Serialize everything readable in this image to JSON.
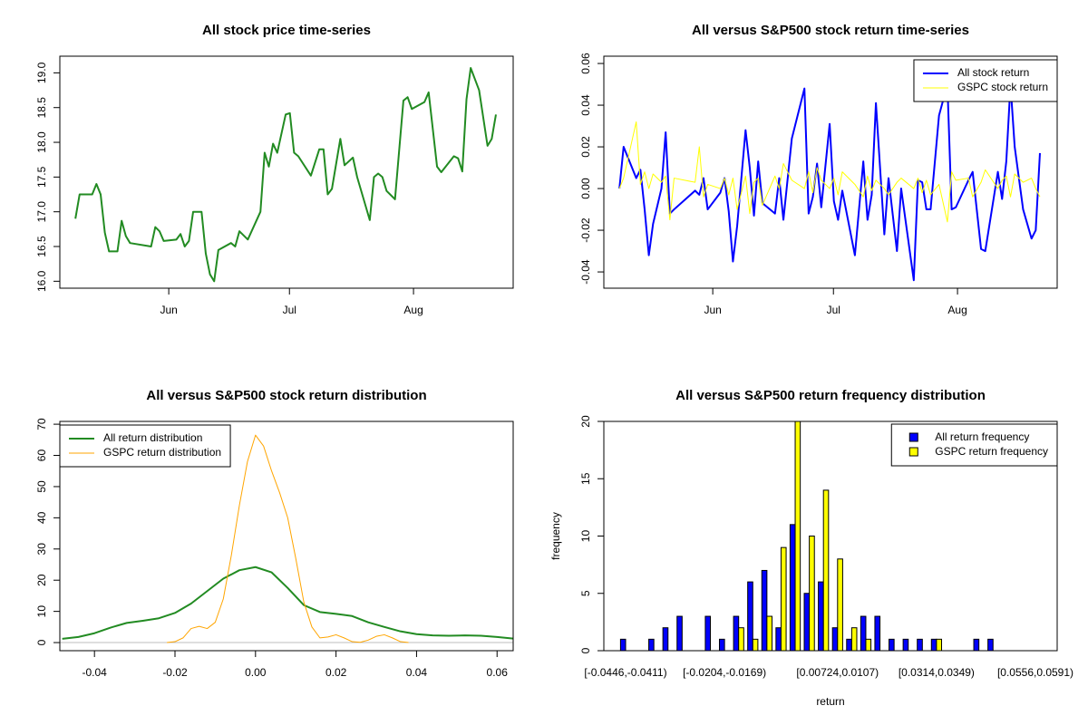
{
  "chart_data": [
    {
      "type": "line",
      "title": "All stock price time-series",
      "x": [
        0,
        1,
        4,
        5,
        6,
        7,
        8,
        10,
        11,
        12,
        13,
        18,
        19,
        20,
        21,
        24,
        25,
        26,
        27,
        28,
        30,
        31,
        32,
        33,
        34,
        37,
        38,
        39,
        41,
        44,
        45,
        46,
        47,
        48,
        50,
        51,
        52,
        53,
        56,
        58,
        59,
        60,
        61,
        63,
        64,
        66,
        67,
        70,
        71,
        72,
        73,
        74,
        76,
        78,
        79,
        80,
        83,
        84,
        86,
        87,
        90,
        91,
        92,
        93,
        94,
        96,
        98,
        99,
        100
      ],
      "xlim": [
        -3.7,
        104.1
      ],
      "xticks": [
        {
          "value": 22.2,
          "label": "Jun"
        },
        {
          "value": 50.9,
          "label": "Jul"
        },
        {
          "value": 80.4,
          "label": "Aug"
        }
      ],
      "ylim": [
        15.9,
        19.24
      ],
      "yticks": [
        {
          "value": 16,
          "label": "16.0"
        },
        16.5,
        {
          "value": 17,
          "label": "17.0"
        },
        17.5,
        {
          "value": 18,
          "label": "18.0"
        },
        18.5,
        {
          "value": 19,
          "label": "19.0"
        }
      ],
      "series": [
        {
          "color": "#228b22",
          "values": [
            16.9,
            17.25,
            17.25,
            17.4,
            17.25,
            16.7,
            16.43,
            16.43,
            16.87,
            16.65,
            16.55,
            16.5,
            16.78,
            16.72,
            16.58,
            16.6,
            16.68,
            16.5,
            16.58,
            17.0,
            17.0,
            16.4,
            16.1,
            16.0,
            16.45,
            16.55,
            16.5,
            16.72,
            16.6,
            17.0,
            17.85,
            17.65,
            17.98,
            17.85,
            18.4,
            18.42,
            17.85,
            17.8,
            17.52,
            17.9,
            17.9,
            17.25,
            17.33,
            18.05,
            17.67,
            17.78,
            17.5,
            16.88,
            17.5,
            17.55,
            17.5,
            17.3,
            17.18,
            18.6,
            18.65,
            18.48,
            18.58,
            18.72,
            17.65,
            17.57,
            17.8,
            17.77,
            17.58,
            18.62,
            19.07,
            18.75,
            17.95,
            18.05,
            18.4
          ]
        }
      ]
    },
    {
      "type": "line",
      "title": "All versus S&P500 stock return time-series",
      "x": [
        0,
        1,
        4,
        5,
        6,
        7,
        8,
        10,
        11,
        12,
        13,
        18,
        19,
        20,
        21,
        24,
        25,
        26,
        27,
        28,
        30,
        31,
        32,
        33,
        34,
        37,
        38,
        39,
        41,
        44,
        45,
        46,
        47,
        48,
        50,
        51,
        52,
        53,
        56,
        58,
        59,
        60,
        61,
        63,
        64,
        66,
        67,
        70,
        71,
        72,
        73,
        74,
        76,
        78,
        79,
        80,
        83,
        84,
        86,
        87,
        90,
        91,
        92,
        93,
        94,
        96,
        98,
        99,
        100
      ],
      "xlim": [
        -3.7,
        104.1
      ],
      "xticks": [
        {
          "value": 22.2,
          "label": "Jun"
        },
        {
          "value": 50.9,
          "label": "Jul"
        },
        {
          "value": 80.4,
          "label": "Aug"
        }
      ],
      "ylim": [
        -0.0478,
        0.0635
      ],
      "yticks": [
        -0.04,
        -0.02,
        {
          "value": 0,
          "label": "0.00"
        },
        0.02,
        0.04,
        0.06
      ],
      "legend": "top-right",
      "series": [
        {
          "name": "All stock return",
          "color": "#0000ff",
          "width": 2,
          "values": [
            0,
            0.02,
            0.005,
            0.009,
            -0.01,
            -0.032,
            -0.017,
            0,
            0.027,
            -0.012,
            -0.01,
            -0.001,
            -0.003,
            0.005,
            -0.01,
            -0.002,
            0.005,
            -0.011,
            -0.035,
            -0.018,
            0.028,
            0.01,
            -0.013,
            0.013,
            -0.007,
            -0.012,
            0.005,
            -0.015,
            0.024,
            0.048,
            -0.012,
            -0.004,
            0.012,
            -0.009,
            0.031,
            -0.006,
            -0.015,
            -0.001,
            -0.032,
            0.013,
            -0.015,
            -0.003,
            0.041,
            -0.022,
            0.005,
            -0.03,
            0,
            -0.044,
            0.004,
            0.003,
            -0.01,
            -0.01,
            0.035,
            0.05,
            -0.01,
            -0.009,
            0.004,
            0.008,
            -0.029,
            -0.03,
            0.008,
            -0.005,
            0.013,
            0.05,
            0.02,
            -0.01,
            -0.024,
            -0.02,
            0.017
          ]
        },
        {
          "name": "GSPC stock return",
          "color": "#ffff00",
          "width": 1,
          "values": [
            0,
            0.005,
            0.032,
            0.002,
            0.008,
            0,
            0.007,
            0.003,
            0.006,
            -0.015,
            0.005,
            0.003,
            0.02,
            -0.004,
            0.002,
            0,
            0.005,
            -0.003,
            0.005,
            -0.01,
            0.006,
            -0.012,
            0.003,
            0.005,
            -0.008,
            0.006,
            0,
            0.012,
            0.004,
            0,
            0.008,
            -0.002,
            0.01,
            0.004,
            0,
            0.005,
            -0.003,
            0.008,
            0.002,
            -0.004,
            0.006,
            -0.001,
            0.004,
            0,
            -0.003,
            0.003,
            0.005,
            0,
            0.005,
            -0.002,
            0.004,
            -0.003,
            0.002,
            -0.016,
            0.008,
            0.004,
            0.005,
            -0.004,
            0.003,
            0.009,
            0,
            0.004,
            0.006,
            -0.004,
            0.007,
            0.003,
            0.005,
            0,
            -0.004
          ]
        }
      ]
    },
    {
      "type": "line",
      "title": "All versus S&P500 stock return distribution",
      "xlim": [
        -0.0486,
        0.064
      ],
      "xticks": [
        -0.04,
        -0.02,
        {
          "value": 0,
          "label": "0.00"
        },
        0.02,
        0.04,
        0.06
      ],
      "ylim": [
        -2.6,
        70.9
      ],
      "yticks": [
        0,
        10,
        20,
        30,
        40,
        50,
        60,
        70
      ],
      "zero_line": true,
      "legend": "top-left",
      "series": [
        {
          "name": "All return distribution",
          "color": "#228b22",
          "width": 2,
          "x": [
            -0.048,
            -0.044,
            -0.04,
            -0.036,
            -0.032,
            -0.028,
            -0.024,
            -0.02,
            -0.016,
            -0.012,
            -0.008,
            -0.004,
            0,
            0.004,
            0.008,
            0.012,
            0.016,
            0.02,
            0.024,
            0.028,
            0.032,
            0.036,
            0.04,
            0.044,
            0.048,
            0.052,
            0.056,
            0.06,
            0.064
          ],
          "values": [
            1.2,
            1.8,
            3.0,
            4.8,
            6.3,
            7.0,
            7.8,
            9.5,
            12.5,
            16.5,
            20.5,
            23.2,
            24.2,
            22.5,
            17.5,
            12.0,
            9.8,
            9.2,
            8.5,
            6.5,
            5.0,
            3.6,
            2.7,
            2.3,
            2.2,
            2.3,
            2.2,
            1.8,
            1.3
          ]
        },
        {
          "name": "GSPC return distribution",
          "color": "#ffa500",
          "width": 1,
          "x": [
            -0.022,
            -0.02,
            -0.018,
            -0.016,
            -0.014,
            -0.012,
            -0.01,
            -0.008,
            -0.006,
            -0.004,
            -0.002,
            0,
            0.002,
            0.004,
            0.006,
            0.008,
            0.01,
            0.012,
            0.014,
            0.016,
            0.018,
            0.02,
            0.022,
            0.024,
            0.026,
            0.028,
            0.03,
            0.032,
            0.034,
            0.036,
            0.038
          ],
          "values": [
            0,
            0.3,
            1.5,
            4.5,
            5.2,
            4.5,
            6.5,
            14,
            28,
            44,
            58,
            66.5,
            63,
            55,
            48,
            40,
            27,
            13,
            5,
            1.5,
            1.8,
            2.5,
            1.5,
            0.3,
            0.1,
            0.8,
            2.0,
            2.5,
            1.5,
            0.3,
            0
          ]
        }
      ]
    },
    {
      "type": "bar",
      "title": "All versus S&P500 return frequency distribution",
      "xlabel": "return",
      "ylabel": "frequency",
      "categories": [
        "[-0.0446,-0.0411)",
        null,
        null,
        null,
        null,
        null,
        null,
        "[-0.0204,-0.0169)",
        null,
        null,
        null,
        null,
        null,
        null,
        null,
        "[0.00724,0.0107)",
        null,
        null,
        null,
        null,
        null,
        null,
        "[0.0314,0.0349)",
        null,
        null,
        null,
        null,
        null,
        null,
        "[0.0556,0.0591)"
      ],
      "ylim": [
        0,
        20
      ],
      "yticks": [
        0,
        5,
        10,
        15,
        20
      ],
      "legend": "top-right",
      "series": [
        {
          "name": "All return frequency",
          "color": "#0000ff",
          "values": [
            1,
            0,
            1,
            2,
            3,
            0,
            3,
            1,
            3,
            6,
            7,
            2,
            11,
            5,
            6,
            2,
            1,
            3,
            3,
            1,
            1,
            1,
            1,
            0,
            0,
            1,
            1,
            0,
            0,
            0
          ]
        },
        {
          "name": "GSPC return frequency",
          "color": "#ffff00",
          "values": [
            0,
            0,
            0,
            0,
            0,
            0,
            0,
            0,
            2,
            1,
            3,
            9,
            20,
            10,
            14,
            8,
            2,
            1,
            0,
            0,
            0,
            0,
            1,
            0,
            0,
            0,
            0,
            0,
            0,
            0
          ]
        }
      ]
    }
  ]
}
